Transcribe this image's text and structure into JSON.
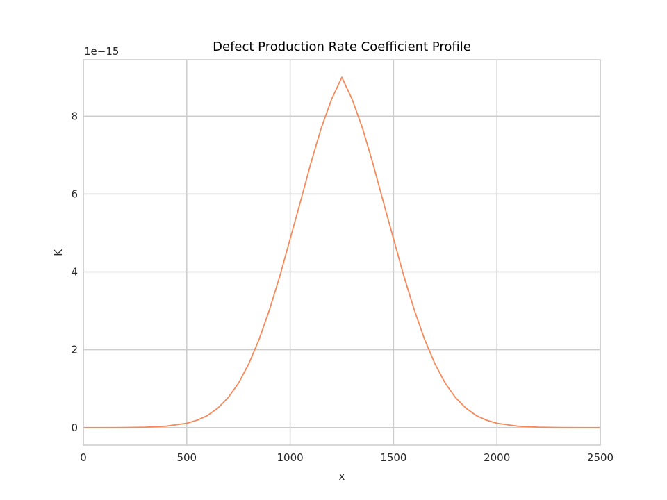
{
  "chart_data": {
    "type": "line",
    "title": "Defect Production Rate Coefficient Profile",
    "xlabel": "x",
    "ylabel": "K",
    "y_offset_label": "1e−15",
    "xlim": [
      0,
      2500
    ],
    "ylim": [
      -0.45,
      9.45
    ],
    "x_ticks": [
      0,
      500,
      1000,
      1500,
      2000,
      2500
    ],
    "x_tick_labels": [
      "0",
      "500",
      "1000",
      "1500",
      "2000",
      "2500"
    ],
    "y_ticks": [
      0,
      2,
      4,
      6,
      8
    ],
    "y_tick_labels": [
      "0",
      "2",
      "4",
      "6",
      "8"
    ],
    "grid": true,
    "legend": "none",
    "y_scale_factor": 1e-15,
    "series": [
      {
        "color": "#f5895a",
        "x": [
          0,
          100,
          200,
          300,
          400,
          500,
          550,
          600,
          650,
          700,
          750,
          800,
          850,
          900,
          950,
          1000,
          1050,
          1100,
          1150,
          1200,
          1250,
          1300,
          1350,
          1400,
          1450,
          1500,
          1550,
          1600,
          1650,
          1700,
          1750,
          1800,
          1850,
          1900,
          1950,
          2000,
          2100,
          2200,
          2300,
          2400,
          2500
        ],
        "y": [
          0.0,
          0.0,
          0.002,
          0.011,
          0.037,
          0.112,
          0.19,
          0.31,
          0.5,
          0.77,
          1.14,
          1.64,
          2.27,
          3.03,
          3.89,
          4.85,
          5.81,
          6.79,
          7.69,
          8.43,
          9.0,
          8.43,
          7.69,
          6.79,
          5.81,
          4.85,
          3.89,
          3.03,
          2.27,
          1.64,
          1.14,
          0.77,
          0.5,
          0.31,
          0.19,
          0.112,
          0.037,
          0.011,
          0.002,
          0.0,
          0.0
        ]
      }
    ]
  },
  "colors": {
    "line": "#f5895a",
    "grid": "#cccccc",
    "axes_frame": "#cccccc",
    "text": "#262626"
  }
}
